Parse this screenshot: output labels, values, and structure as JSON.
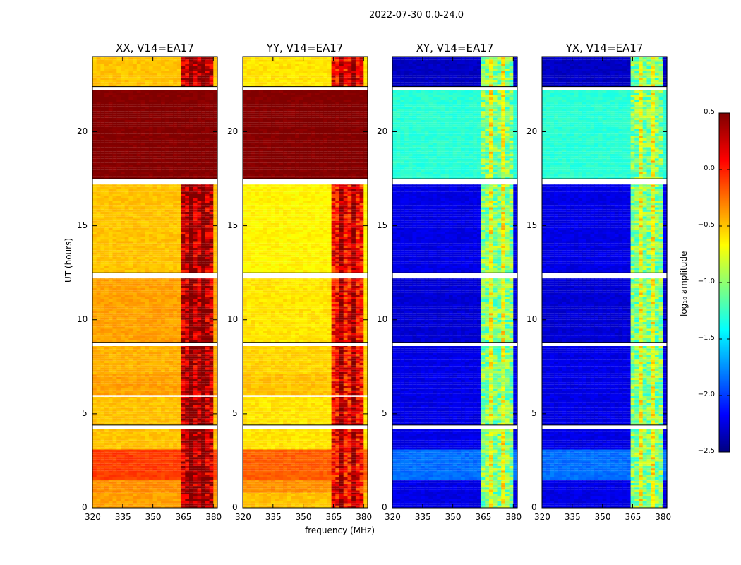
{
  "figure": {
    "suptitle": "2022-07-30 0.0-24.0",
    "ylabel": "UT (hours)",
    "xlabel": "frequency (MHz)",
    "colorbar_label": "log₁₀ amplitude"
  },
  "chart_data": [
    {
      "type": "heatmap",
      "title": "XX, V14=EA17",
      "x": {
        "range": [
          320,
          382
        ],
        "ticks": [
          320,
          335,
          350,
          365,
          380
        ]
      },
      "y": {
        "range": [
          0,
          24
        ],
        "ticks": [
          0,
          5,
          10,
          15,
          20
        ]
      },
      "z_description": "autocorrelation amplitude, log10",
      "base_levels": [
        {
          "ut": [
            0.0,
            0.8
          ],
          "value": -0.35
        },
        {
          "ut": [
            0.8,
            1.5
          ],
          "value": -0.3
        },
        {
          "ut": [
            1.5,
            3.1
          ],
          "value": -0.05
        },
        {
          "ut": [
            3.1,
            4.2
          ],
          "value": -0.45
        },
        {
          "ut": [
            4.4,
            5.9
          ],
          "value": -0.45
        },
        {
          "ut": [
            6.0,
            7.1
          ],
          "value": -0.35
        },
        {
          "ut": [
            7.1,
            8.6
          ],
          "value": -0.4
        },
        {
          "ut": [
            8.8,
            12.2
          ],
          "value": -0.35
        },
        {
          "ut": [
            12.5,
            17.2
          ],
          "value": -0.45
        },
        {
          "ut": [
            17.5,
            22.2
          ],
          "value": 0.5
        },
        {
          "ut": [
            22.4,
            24.0
          ],
          "value": -0.45
        }
      ],
      "rfi_band_mhz": [
        364,
        380
      ],
      "rfi_value": 0.3,
      "flagged_ut": [
        [
          12.3,
          12.5
        ],
        [
          17.2,
          17.5
        ],
        [
          22.2,
          22.4
        ],
        [
          4.2,
          4.4
        ],
        [
          8.6,
          8.8
        ]
      ]
    },
    {
      "type": "heatmap",
      "title": "YY, V14=EA17",
      "x": {
        "range": [
          320,
          382
        ],
        "ticks": [
          320,
          335,
          350,
          365,
          380
        ]
      },
      "y": {
        "range": [
          0,
          24
        ],
        "ticks": [
          0,
          5,
          10,
          15,
          20
        ]
      },
      "z_description": "autocorrelation amplitude, log10",
      "base_levels": [
        {
          "ut": [
            0.0,
            0.8
          ],
          "value": -0.45
        },
        {
          "ut": [
            0.8,
            1.5
          ],
          "value": -0.3
        },
        {
          "ut": [
            1.5,
            3.1
          ],
          "value": -0.15
        },
        {
          "ut": [
            3.1,
            4.2
          ],
          "value": -0.55
        },
        {
          "ut": [
            4.4,
            5.9
          ],
          "value": -0.55
        },
        {
          "ut": [
            6.0,
            7.1
          ],
          "value": -0.45
        },
        {
          "ut": [
            7.1,
            8.6
          ],
          "value": -0.5
        },
        {
          "ut": [
            8.8,
            12.2
          ],
          "value": -0.55
        },
        {
          "ut": [
            12.5,
            17.2
          ],
          "value": -0.6
        },
        {
          "ut": [
            17.5,
            22.2
          ],
          "value": 0.5
        },
        {
          "ut": [
            22.4,
            24.0
          ],
          "value": -0.55
        }
      ],
      "rfi_band_mhz": [
        364,
        380
      ],
      "rfi_value": 0.1,
      "flagged_ut": [
        [
          12.3,
          12.5
        ],
        [
          17.2,
          17.5
        ],
        [
          22.2,
          22.4
        ],
        [
          4.2,
          4.4
        ],
        [
          8.6,
          8.8
        ]
      ]
    },
    {
      "type": "heatmap",
      "title": "XY, V14=EA17",
      "x": {
        "range": [
          320,
          382
        ],
        "ticks": [
          320,
          335,
          350,
          365,
          380
        ]
      },
      "y": {
        "range": [
          0,
          24
        ],
        "ticks": [
          0,
          5,
          10,
          15,
          20
        ]
      },
      "z_description": "cross-hand amplitude, log10",
      "base_levels": [
        {
          "ut": [
            0.0,
            1.5
          ],
          "value": -2.2
        },
        {
          "ut": [
            1.5,
            3.1
          ],
          "value": -1.8
        },
        {
          "ut": [
            3.1,
            4.2
          ],
          "value": -2.2
        },
        {
          "ut": [
            4.4,
            8.6
          ],
          "value": -2.2
        },
        {
          "ut": [
            8.8,
            12.2
          ],
          "value": -2.25
        },
        {
          "ut": [
            12.5,
            17.2
          ],
          "value": -2.2
        },
        {
          "ut": [
            17.5,
            22.2
          ],
          "value": -1.25
        },
        {
          "ut": [
            22.4,
            24.0
          ],
          "value": -2.3
        }
      ],
      "rfi_band_mhz": [
        363,
        380
      ],
      "rfi_value": -1.0,
      "flagged_ut": [
        [
          12.3,
          12.5
        ],
        [
          17.2,
          17.5
        ],
        [
          22.2,
          22.4
        ],
        [
          4.2,
          4.4
        ],
        [
          8.6,
          8.8
        ]
      ]
    },
    {
      "type": "heatmap",
      "title": "YX, V14=EA17",
      "x": {
        "range": [
          320,
          382
        ],
        "ticks": [
          320,
          335,
          350,
          365,
          380
        ]
      },
      "y": {
        "range": [
          0,
          24
        ],
        "ticks": [
          0,
          5,
          10,
          15,
          20
        ]
      },
      "z_description": "cross-hand amplitude, log10",
      "base_levels": [
        {
          "ut": [
            0.0,
            1.5
          ],
          "value": -2.2
        },
        {
          "ut": [
            1.5,
            3.1
          ],
          "value": -1.8
        },
        {
          "ut": [
            3.1,
            4.2
          ],
          "value": -2.2
        },
        {
          "ut": [
            4.4,
            8.6
          ],
          "value": -2.2
        },
        {
          "ut": [
            8.8,
            12.2
          ],
          "value": -2.25
        },
        {
          "ut": [
            12.5,
            17.2
          ],
          "value": -2.2
        },
        {
          "ut": [
            17.5,
            22.2
          ],
          "value": -1.25
        },
        {
          "ut": [
            22.4,
            24.0
          ],
          "value": -2.3
        }
      ],
      "rfi_band_mhz": [
        363,
        380
      ],
      "rfi_value": -1.0,
      "flagged_ut": [
        [
          12.3,
          12.5
        ],
        [
          17.2,
          17.5
        ],
        [
          22.2,
          22.4
        ],
        [
          4.2,
          4.4
        ],
        [
          8.6,
          8.8
        ]
      ]
    }
  ],
  "colorbar": {
    "colormap": "jet",
    "range": [
      -2.5,
      0.5
    ],
    "ticks": [
      "0.5",
      "0.0",
      "−0.5",
      "−1.0",
      "−1.5",
      "−2.0",
      "−2.5"
    ],
    "tick_values": [
      0.5,
      0.0,
      -0.5,
      -1.0,
      -1.5,
      -2.0,
      -2.5
    ]
  },
  "colors": {
    "jet_dark_blue": "#00007f",
    "jet_blue": "#0000ff",
    "jet_cyan": "#00ffff",
    "jet_yellow": "#ffff00",
    "jet_red": "#ff0000",
    "jet_dark_red": "#7f0000",
    "flag_white": "#ffffff",
    "axis": "#000000"
  }
}
